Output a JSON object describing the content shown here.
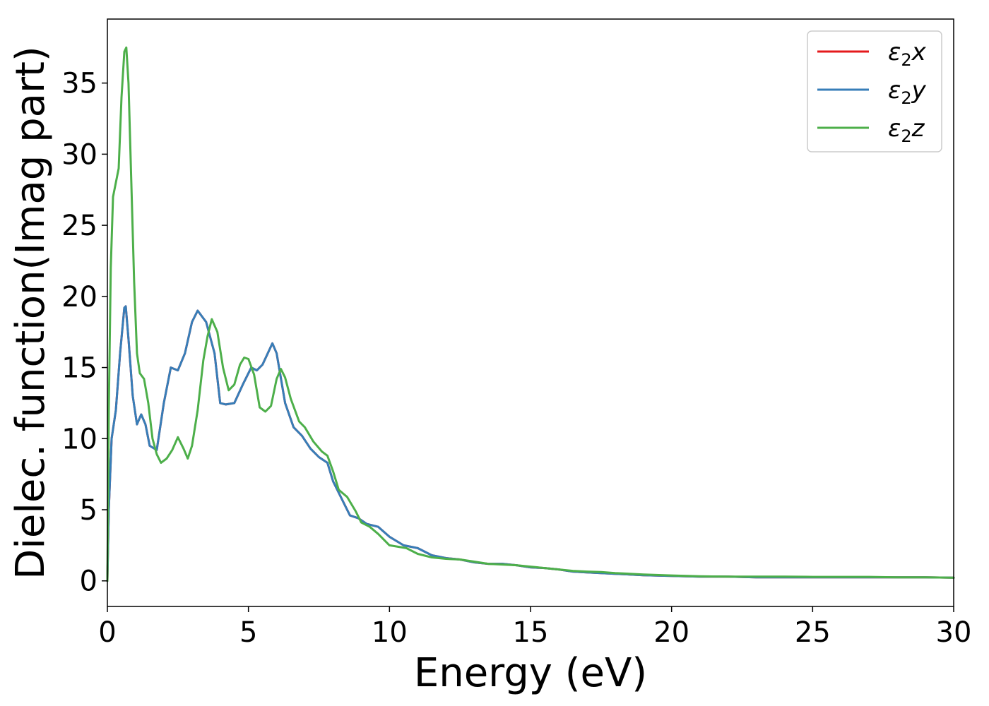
{
  "chart_data": {
    "type": "line",
    "title": "",
    "xlabel": "Energy (eV)",
    "ylabel": "Dielec. function(Imag part)",
    "xlim": [
      0,
      30
    ],
    "ylim": [
      -1.8,
      39.5
    ],
    "xticks": [
      0,
      5,
      10,
      15,
      20,
      25,
      30
    ],
    "xtick_labels": [
      "0",
      "5",
      "10",
      "15",
      "20",
      "25",
      "30"
    ],
    "yticks": [
      0,
      5,
      10,
      15,
      20,
      25,
      30,
      35
    ],
    "ytick_labels": [
      "0",
      "5",
      "10",
      "15",
      "20",
      "25",
      "30",
      "35"
    ],
    "grid": false,
    "legend": {
      "position": "top-right",
      "entries": [
        {
          "symbol": "ε",
          "subscript": "2",
          "suffix": "x",
          "color": "#e41a1c"
        },
        {
          "symbol": "ε",
          "subscript": "2",
          "suffix": "y",
          "color": "#377eb8"
        },
        {
          "symbol": "ε",
          "subscript": "2",
          "suffix": "z",
          "color": "#4daf4a"
        }
      ]
    },
    "series": [
      {
        "key": "x",
        "color": "#e41a1c",
        "x": [
          0,
          0.05,
          0.15,
          0.3,
          0.45,
          0.6,
          0.65,
          0.75,
          0.9,
          1.05,
          1.2,
          1.35,
          1.5,
          1.75,
          2.0,
          2.25,
          2.5,
          2.75,
          3.0,
          3.2,
          3.5,
          3.8,
          4.0,
          4.2,
          4.5,
          4.8,
          5.1,
          5.3,
          5.5,
          5.85,
          6.0,
          6.3,
          6.6,
          6.9,
          7.2,
          7.5,
          7.8,
          8.0,
          8.3,
          8.6,
          8.9,
          9.2,
          9.6,
          10.0,
          10.5,
          11.0,
          11.5,
          12.0,
          12.5,
          13.0,
          13.5,
          14.0,
          14.5,
          15.0,
          15.5,
          16.0,
          16.5,
          17.0,
          17.5,
          18.0,
          19.0,
          20.0,
          21.0,
          22.0,
          23.0,
          24.0,
          25.0,
          26.0,
          27.0,
          28.0,
          29.0,
          30.0
        ],
        "y": [
          0,
          5.0,
          10.0,
          12.0,
          16.0,
          19.2,
          19.3,
          17.0,
          13.0,
          11.0,
          11.7,
          11.0,
          9.5,
          9.2,
          12.5,
          15.0,
          14.8,
          16.0,
          18.2,
          19.0,
          18.2,
          16.0,
          12.5,
          12.4,
          12.5,
          13.8,
          15.0,
          14.8,
          15.2,
          16.7,
          16.0,
          12.5,
          10.8,
          10.2,
          9.3,
          8.7,
          8.3,
          7.0,
          5.8,
          4.6,
          4.4,
          4.0,
          3.8,
          3.1,
          2.5,
          2.3,
          1.8,
          1.6,
          1.5,
          1.3,
          1.2,
          1.2,
          1.1,
          0.95,
          0.9,
          0.8,
          0.65,
          0.6,
          0.55,
          0.5,
          0.4,
          0.35,
          0.3,
          0.3,
          0.25,
          0.25,
          0.25,
          0.25,
          0.25,
          0.25,
          0.25,
          0.22
        ]
      },
      {
        "key": "y",
        "color": "#377eb8",
        "x": [
          0,
          0.05,
          0.15,
          0.3,
          0.45,
          0.6,
          0.65,
          0.75,
          0.9,
          1.05,
          1.2,
          1.35,
          1.5,
          1.75,
          2.0,
          2.25,
          2.5,
          2.75,
          3.0,
          3.2,
          3.5,
          3.8,
          4.0,
          4.2,
          4.5,
          4.8,
          5.1,
          5.3,
          5.5,
          5.85,
          6.0,
          6.3,
          6.6,
          6.9,
          7.2,
          7.5,
          7.8,
          8.0,
          8.3,
          8.6,
          8.9,
          9.2,
          9.6,
          10.0,
          10.5,
          11.0,
          11.5,
          12.0,
          12.5,
          13.0,
          13.5,
          14.0,
          14.5,
          15.0,
          15.5,
          16.0,
          16.5,
          17.0,
          17.5,
          18.0,
          19.0,
          20.0,
          21.0,
          22.0,
          23.0,
          24.0,
          25.0,
          26.0,
          27.0,
          28.0,
          29.0,
          30.0
        ],
        "y": [
          0,
          5.0,
          10.0,
          12.0,
          16.0,
          19.2,
          19.3,
          17.0,
          13.0,
          11.0,
          11.7,
          11.0,
          9.5,
          9.2,
          12.5,
          15.0,
          14.8,
          16.0,
          18.2,
          19.0,
          18.2,
          16.0,
          12.5,
          12.4,
          12.5,
          13.8,
          15.0,
          14.8,
          15.2,
          16.7,
          16.0,
          12.5,
          10.8,
          10.2,
          9.3,
          8.7,
          8.3,
          7.0,
          5.8,
          4.6,
          4.4,
          4.0,
          3.8,
          3.1,
          2.5,
          2.3,
          1.8,
          1.6,
          1.5,
          1.3,
          1.2,
          1.2,
          1.1,
          0.95,
          0.9,
          0.8,
          0.65,
          0.6,
          0.55,
          0.5,
          0.4,
          0.35,
          0.3,
          0.3,
          0.25,
          0.25,
          0.25,
          0.25,
          0.25,
          0.25,
          0.25,
          0.22
        ]
      },
      {
        "key": "z",
        "color": "#4daf4a",
        "x": [
          0,
          0.05,
          0.12,
          0.2,
          0.3,
          0.4,
          0.5,
          0.6,
          0.67,
          0.75,
          0.85,
          0.95,
          1.05,
          1.15,
          1.3,
          1.45,
          1.6,
          1.75,
          1.9,
          2.1,
          2.3,
          2.5,
          2.7,
          2.85,
          3.0,
          3.2,
          3.4,
          3.55,
          3.7,
          3.9,
          4.1,
          4.3,
          4.5,
          4.7,
          4.85,
          5.0,
          5.2,
          5.4,
          5.6,
          5.8,
          6.0,
          6.15,
          6.3,
          6.5,
          6.8,
          7.0,
          7.3,
          7.6,
          7.8,
          8.0,
          8.2,
          8.5,
          8.8,
          9.0,
          9.3,
          9.6,
          10.0,
          10.3,
          10.6,
          11.0,
          11.5,
          12.0,
          12.5,
          13.0,
          13.5,
          14.0,
          14.5,
          15.0,
          15.5,
          16.0,
          16.5,
          17.0,
          17.5,
          18.0,
          19.0,
          20.0,
          21.0,
          22.0,
          23.0,
          24.0,
          25.0,
          26.0,
          27.0,
          28.0,
          29.0,
          30.0
        ],
        "y": [
          0,
          12.0,
          22.0,
          27.0,
          28.0,
          29.0,
          34.0,
          37.2,
          37.5,
          35.0,
          28.0,
          21.0,
          16.0,
          14.6,
          14.2,
          12.5,
          10.0,
          8.9,
          8.3,
          8.6,
          9.2,
          10.1,
          9.3,
          8.6,
          9.5,
          12.0,
          15.5,
          17.2,
          18.4,
          17.5,
          15.0,
          13.4,
          13.8,
          15.2,
          15.7,
          15.6,
          14.5,
          12.2,
          11.9,
          12.3,
          14.2,
          14.9,
          14.3,
          12.8,
          11.2,
          10.8,
          9.8,
          9.1,
          8.8,
          7.7,
          6.4,
          5.9,
          4.9,
          4.1,
          3.8,
          3.3,
          2.5,
          2.4,
          2.3,
          1.9,
          1.65,
          1.55,
          1.5,
          1.35,
          1.2,
          1.15,
          1.1,
          1.0,
          0.9,
          0.8,
          0.7,
          0.65,
          0.62,
          0.55,
          0.45,
          0.38,
          0.32,
          0.3,
          0.3,
          0.3,
          0.28,
          0.28,
          0.28,
          0.25,
          0.25,
          0.22
        ]
      }
    ]
  }
}
